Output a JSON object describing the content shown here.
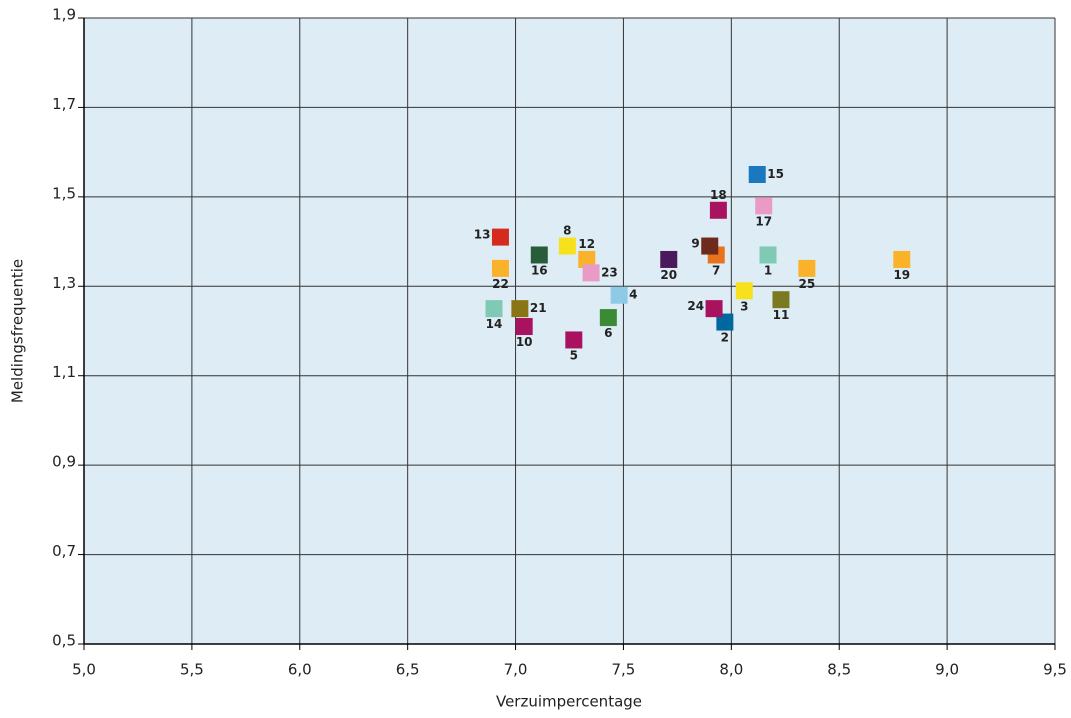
{
  "chart_data": {
    "type": "scatter",
    "x_label": "Verzuimpercentage",
    "y_label": "Meldingsfrequentie",
    "xlim": [
      5.0,
      9.5
    ],
    "ylim": [
      0.5,
      1.9
    ],
    "xticks": [
      {
        "value": 5.0,
        "label": "5,0"
      },
      {
        "value": 5.5,
        "label": "5,5"
      },
      {
        "value": 6.0,
        "label": "6,0"
      },
      {
        "value": 6.5,
        "label": "6,5"
      },
      {
        "value": 7.0,
        "label": "7,0"
      },
      {
        "value": 7.5,
        "label": "7,5"
      },
      {
        "value": 8.0,
        "label": "8,0"
      },
      {
        "value": 8.5,
        "label": "8,5"
      },
      {
        "value": 9.0,
        "label": "9,0"
      },
      {
        "value": 9.5,
        "label": "9,5"
      }
    ],
    "yticks": [
      {
        "value": 0.5,
        "label": "0,5"
      },
      {
        "value": 0.7,
        "label": "0,7"
      },
      {
        "value": 0.9,
        "label": "0,9"
      },
      {
        "value": 1.1,
        "label": "1,1"
      },
      {
        "value": 1.3,
        "label": "1,3"
      },
      {
        "value": 1.5,
        "label": "1,5"
      },
      {
        "value": 1.7,
        "label": "1,7"
      },
      {
        "value": 1.9,
        "label": "1,9"
      }
    ],
    "grid": true,
    "points": [
      {
        "label": "1",
        "x": 8.17,
        "y": 1.37,
        "color": "#7fc9b5"
      },
      {
        "label": "2",
        "x": 7.97,
        "y": 1.22,
        "color": "#00689e"
      },
      {
        "label": "3",
        "x": 8.06,
        "y": 1.29,
        "color": "#f6e11c"
      },
      {
        "label": "4",
        "x": 7.48,
        "y": 1.28,
        "color": "#8ecae6"
      },
      {
        "label": "5",
        "x": 7.27,
        "y": 1.18,
        "color": "#a8125e"
      },
      {
        "label": "6",
        "x": 7.43,
        "y": 1.23,
        "color": "#3a8a36"
      },
      {
        "label": "7",
        "x": 7.93,
        "y": 1.37,
        "color": "#e8731c"
      },
      {
        "label": "8",
        "x": 7.24,
        "y": 1.39,
        "color": "#f6e11c"
      },
      {
        "label": "9",
        "x": 7.9,
        "y": 1.39,
        "color": "#6e2b1d"
      },
      {
        "label": "10",
        "x": 7.04,
        "y": 1.21,
        "color": "#a8125e"
      },
      {
        "label": "11",
        "x": 8.23,
        "y": 1.27,
        "color": "#7b7a22"
      },
      {
        "label": "12",
        "x": 7.33,
        "y": 1.36,
        "color": "#f9b22a"
      },
      {
        "label": "13",
        "x": 6.93,
        "y": 1.41,
        "color": "#d52b1e"
      },
      {
        "label": "14",
        "x": 6.9,
        "y": 1.25,
        "color": "#7fc9b5"
      },
      {
        "label": "15",
        "x": 8.12,
        "y": 1.55,
        "color": "#1a78be"
      },
      {
        "label": "16",
        "x": 7.11,
        "y": 1.37,
        "color": "#275d38"
      },
      {
        "label": "17",
        "x": 8.15,
        "y": 1.48,
        "color": "#e99bc6"
      },
      {
        "label": "18",
        "x": 7.94,
        "y": 1.47,
        "color": "#a8125e"
      },
      {
        "label": "19",
        "x": 8.79,
        "y": 1.36,
        "color": "#f9b22a"
      },
      {
        "label": "20",
        "x": 7.71,
        "y": 1.36,
        "color": "#4b185c"
      },
      {
        "label": "21",
        "x": 7.02,
        "y": 1.25,
        "color": "#8a7516"
      },
      {
        "label": "22",
        "x": 6.93,
        "y": 1.34,
        "color": "#f9b22a"
      },
      {
        "label": "23",
        "x": 7.35,
        "y": 1.33,
        "color": "#e99bc6"
      },
      {
        "label": "24",
        "x": 7.92,
        "y": 1.25,
        "color": "#a8125e"
      },
      {
        "label": "25",
        "x": 8.35,
        "y": 1.34,
        "color": "#f9b22a"
      }
    ]
  }
}
